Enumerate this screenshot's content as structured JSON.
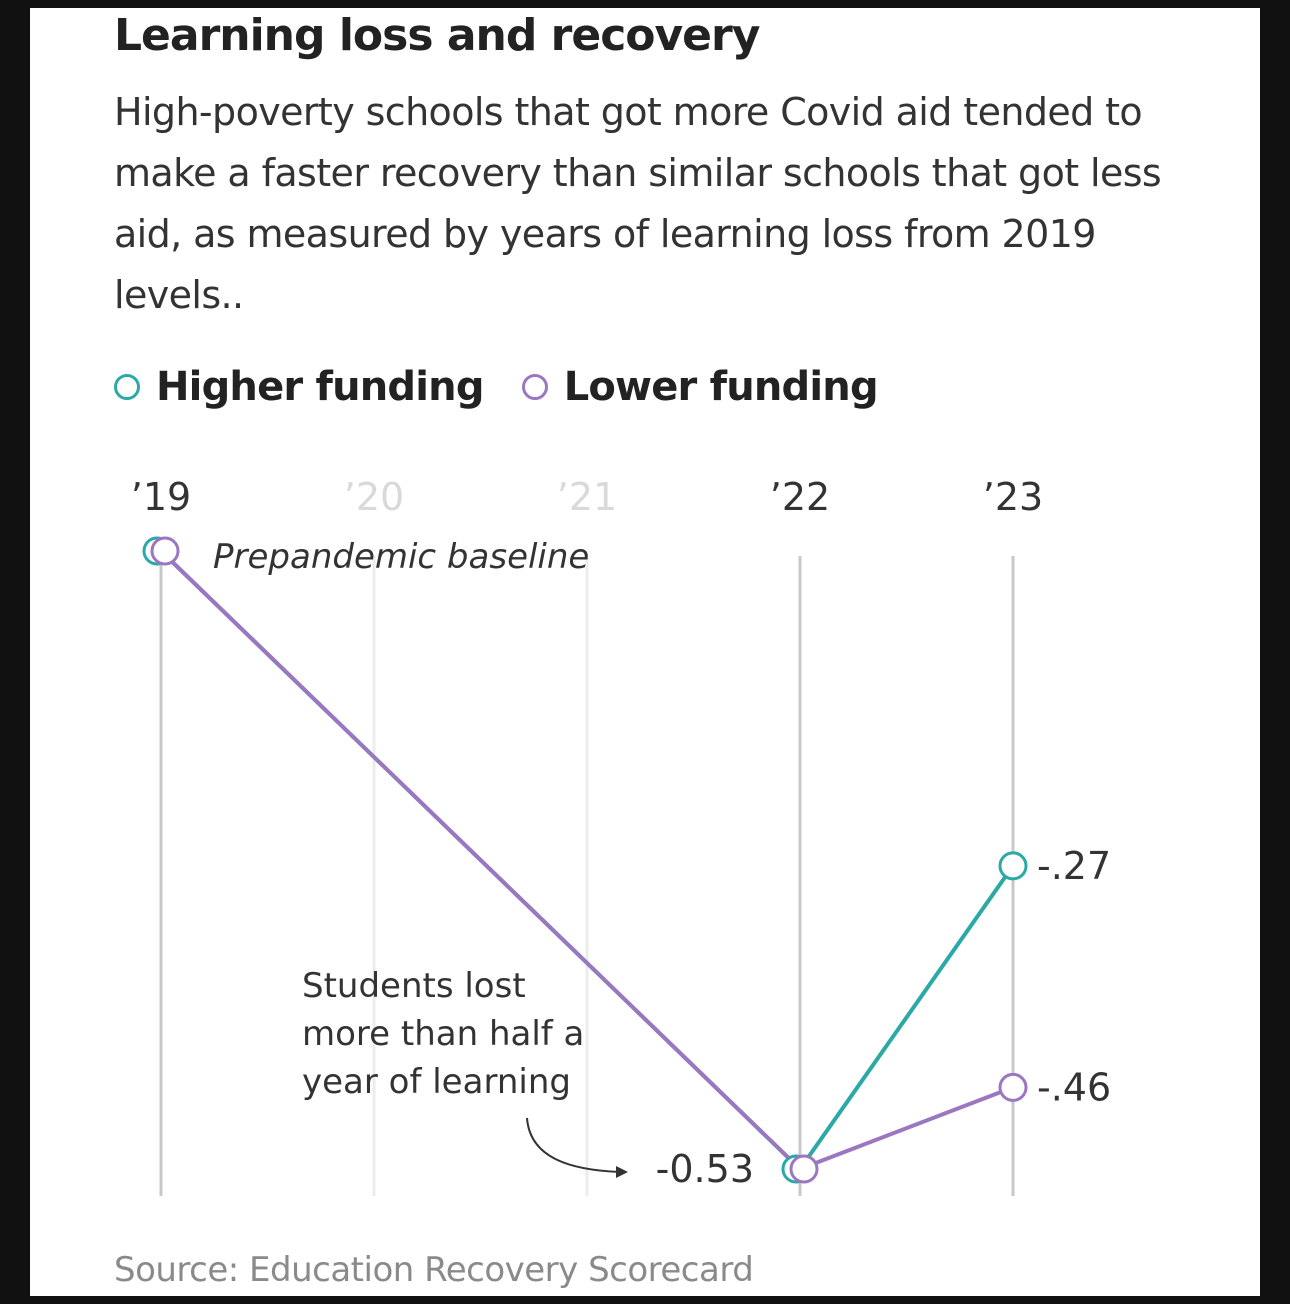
{
  "header": {
    "title": "Learning loss and recovery",
    "subtitle": "High-poverty schools that got more Covid aid tended to make a faster recovery than similar schools that got less aid, as measured by years of learning loss from 2019 levels.."
  },
  "legend": {
    "items": [
      {
        "label": "Higher funding",
        "color": "#2aa9a6"
      },
      {
        "label": "Lower funding",
        "color": "#9b77c2"
      }
    ]
  },
  "annotations": {
    "baseline": "Prepandemic baseline",
    "loss_lines": [
      "Students lost",
      "more than half a",
      "year of learning"
    ]
  },
  "footer": {
    "source": "Source: Education Recovery Scorecard"
  },
  "chart_data": {
    "type": "line",
    "x_ticks": [
      "’19",
      "’20",
      "’21",
      "’22",
      "’23"
    ],
    "x_tick_emphasis": [
      true,
      false,
      false,
      true,
      true
    ],
    "series": [
      {
        "name": "Higher funding",
        "color": "#2aa9a6",
        "points": [
          {
            "x": "’19",
            "y": 0
          },
          {
            "x": "’22",
            "y": -0.53
          },
          {
            "x": "’23",
            "y": -0.27
          }
        ]
      },
      {
        "name": "Lower funding",
        "color": "#9b77c2",
        "points": [
          {
            "x": "’19",
            "y": 0
          },
          {
            "x": "’22",
            "y": -0.53
          },
          {
            "x": "’23",
            "y": -0.46
          }
        ]
      }
    ],
    "value_labels": [
      {
        "x": "’22",
        "y": -0.53,
        "text": "-0.53"
      },
      {
        "x": "’23",
        "y": -0.27,
        "text": "-.27"
      },
      {
        "x": "’23",
        "y": -0.46,
        "text": "-.46"
      }
    ],
    "ylim": [
      -0.53,
      0
    ],
    "grid": "vertical"
  }
}
